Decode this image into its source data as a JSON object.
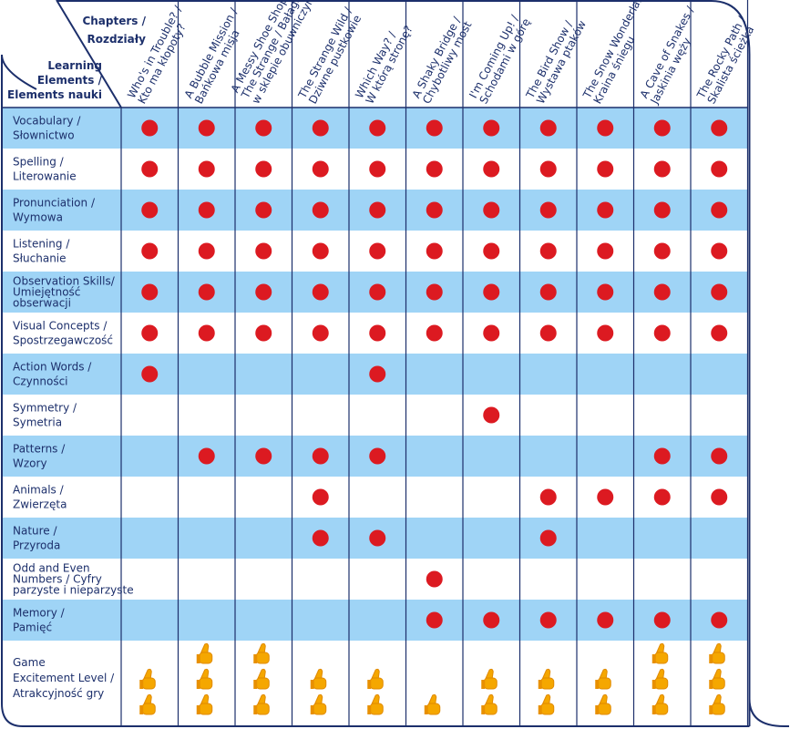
{
  "header": {
    "chapters_label": [
      "Chapters /",
      "Rozdziały"
    ],
    "elements_label": [
      "Learning",
      "Elements /",
      "Elements nauki"
    ]
  },
  "chapters": [
    [
      "Who's in Trouble? /",
      "Kto ma kłopoty?"
    ],
    [
      "A Bubble Mission /",
      "Bańkowa misja"
    ],
    [
      "A Messy Shoe Shop",
      "The Strange / Bałagan",
      "w sklepie obuwniczym"
    ],
    [
      "The Strange Wild /",
      "Dziwne pustkowie"
    ],
    [
      "Which Way? /",
      "W którą stronę?"
    ],
    [
      "A Shaky Bridge /",
      "Chybotliwy most"
    ],
    [
      "I'm Coming Up! /",
      "Schodami w górę"
    ],
    [
      "The Bird Show /",
      "Wystawa ptaków"
    ],
    [
      "The Snow Wonderland/",
      "Kraina śniegu"
    ],
    [
      "A Cave of Snakes /",
      "Jaskinia węży"
    ],
    [
      "The Rocky Path /",
      "Skalista ścieżka"
    ]
  ],
  "rows": [
    {
      "label": [
        "Vocabulary /",
        "Słownictwo"
      ],
      "cells": [
        true,
        true,
        true,
        true,
        true,
        true,
        true,
        true,
        true,
        true,
        true
      ]
    },
    {
      "label": [
        "Spelling  /",
        "Literowanie"
      ],
      "cells": [
        true,
        true,
        true,
        true,
        true,
        true,
        true,
        true,
        true,
        true,
        true
      ]
    },
    {
      "label": [
        "Pronunciation  /",
        "Wymowa"
      ],
      "cells": [
        true,
        true,
        true,
        true,
        true,
        true,
        true,
        true,
        true,
        true,
        true
      ]
    },
    {
      "label": [
        "Listening /",
        "Słuchanie"
      ],
      "cells": [
        true,
        true,
        true,
        true,
        true,
        true,
        true,
        true,
        true,
        true,
        true
      ]
    },
    {
      "label": [
        "Observation Skills/",
        "Umiejętność",
        "obserwacji"
      ],
      "cells": [
        true,
        true,
        true,
        true,
        true,
        true,
        true,
        true,
        true,
        true,
        true
      ]
    },
    {
      "label": [
        "Visual Concepts /",
        "Spostrzegawczość"
      ],
      "cells": [
        true,
        true,
        true,
        true,
        true,
        true,
        true,
        true,
        true,
        true,
        true
      ]
    },
    {
      "label": [
        "Action Words /",
        "Czynności"
      ],
      "cells": [
        true,
        false,
        false,
        false,
        true,
        false,
        false,
        false,
        false,
        false,
        false
      ]
    },
    {
      "label": [
        "Symmetry /",
        "Symetria"
      ],
      "cells": [
        false,
        false,
        false,
        false,
        false,
        false,
        true,
        false,
        false,
        false,
        false
      ]
    },
    {
      "label": [
        "Patterns /",
        "Wzory"
      ],
      "cells": [
        false,
        true,
        true,
        true,
        true,
        false,
        false,
        false,
        false,
        true,
        true
      ]
    },
    {
      "label": [
        "Animals /",
        "Zwierzęta"
      ],
      "cells": [
        false,
        false,
        false,
        true,
        false,
        false,
        false,
        true,
        true,
        true,
        true
      ]
    },
    {
      "label": [
        "Nature /",
        "Przyroda"
      ],
      "cells": [
        false,
        false,
        false,
        true,
        true,
        false,
        false,
        true,
        false,
        false,
        false
      ]
    },
    {
      "label": [
        "Odd and Even",
        "Numbers / Cyfry",
        "parzyste i nieparzyste"
      ],
      "cells": [
        false,
        false,
        false,
        false,
        false,
        true,
        false,
        false,
        false,
        false,
        false
      ]
    },
    {
      "label": [
        "Memory /",
        "Pamięć"
      ],
      "cells": [
        false,
        false,
        false,
        false,
        false,
        true,
        true,
        true,
        true,
        true,
        true
      ]
    }
  ],
  "game": {
    "label": [
      "Game",
      "Excitement Level /",
      "Atrakcyjność gry"
    ],
    "levels": [
      2,
      3,
      3,
      2,
      2,
      1,
      2,
      2,
      2,
      3,
      3
    ]
  }
}
